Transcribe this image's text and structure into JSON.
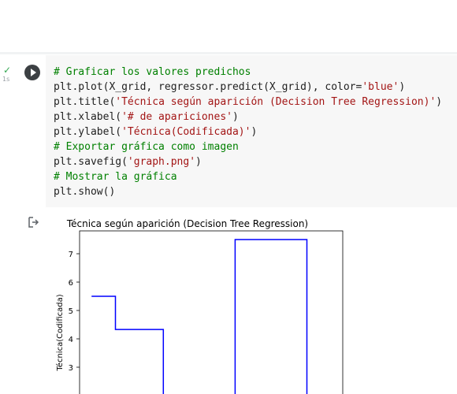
{
  "cell": {
    "status_icon": "check-icon",
    "exec_time": "1s",
    "code_lines": [
      [
        {
          "t": "# Graficar los valores predichos",
          "c": "comment"
        }
      ],
      [
        {
          "t": "plt.plot(X_grid, regressor.predict(X_grid), color=",
          "c": "plain"
        },
        {
          "t": "'blue'",
          "c": "str"
        },
        {
          "t": ")",
          "c": "plain"
        }
      ],
      [
        {
          "t": "plt.title(",
          "c": "plain"
        },
        {
          "t": "'Técnica según aparición (Decision Tree Regression)'",
          "c": "str"
        },
        {
          "t": ")",
          "c": "plain"
        }
      ],
      [
        {
          "t": "plt.xlabel(",
          "c": "plain"
        },
        {
          "t": "'# de apariciones'",
          "c": "str"
        },
        {
          "t": ")",
          "c": "plain"
        }
      ],
      [
        {
          "t": "plt.ylabel(",
          "c": "plain"
        },
        {
          "t": "'Técnica(Codificada)'",
          "c": "str"
        },
        {
          "t": ")",
          "c": "plain"
        }
      ],
      [
        {
          "t": "# Exportar gráfica como imagen",
          "c": "comment"
        }
      ],
      [
        {
          "t": "plt.savefig(",
          "c": "plain"
        },
        {
          "t": "'graph.png'",
          "c": "str"
        },
        {
          "t": ")",
          "c": "plain"
        }
      ],
      [
        {
          "t": "# Mostrar la gráfica",
          "c": "comment"
        }
      ],
      [
        {
          "t": "plt.show()",
          "c": "plain"
        }
      ]
    ]
  },
  "output": {
    "icon": "output-redirect-icon"
  },
  "chart_data": {
    "type": "line",
    "title": "Técnica según aparición (Decision Tree Regression)",
    "xlabel": "",
    "ylabel": "Técnica(Codificada)",
    "y_ticks": [
      3,
      4,
      5,
      6,
      7
    ],
    "ylim_visible": [
      1.9,
      8.0
    ],
    "color": "#0000ff",
    "series": [
      {
        "values_x": [
          0.0,
          1.0,
          1.0,
          3.0,
          3.0,
          6.0,
          6.0,
          9.0,
          9.0
        ],
        "values_y": [
          5.5,
          5.5,
          4.33,
          4.33,
          1.9,
          1.9,
          7.5,
          7.5,
          1.9
        ]
      }
    ],
    "xlim": [
      -0.5,
      10.5
    ]
  }
}
